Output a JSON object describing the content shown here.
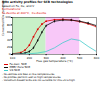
{
  "chart_data": {
    "type": "line",
    "title": "NOx activity profiles for SCR technologies",
    "subtitle": [
      "based on Fe, Cu, and V",
      "Formulations:",
      "Fe-Zeolite at 400°C,  Cu-Zeolite"
    ],
    "x_label": "Flue gas temperature (°C)",
    "y_label": "Converted NOx conversion (%)",
    "xlim": [
      100,
      600
    ],
    "ylim": [
      0,
      100
    ],
    "xticks": [
      100,
      200,
      300,
      400,
      500,
      600
    ],
    "yticks": [
      0,
      20,
      40,
      60,
      80,
      100
    ],
    "grid": false,
    "legend": "bottom",
    "bands": [
      {
        "range": [
          100,
          300
        ],
        "color": "#c8f0c8"
      },
      {
        "range": [
          300,
          500
        ],
        "color": "#f8c8f8"
      }
    ],
    "series": [
      {
        "name": "Fe-zeol. SCR",
        "color": "#dd0000",
        "marker": "square",
        "x": [
          100,
          150,
          175,
          200,
          225,
          250,
          275,
          300,
          350,
          400,
          450,
          500,
          550,
          600
        ],
        "values": [
          2,
          5,
          12,
          25,
          48,
          68,
          82,
          90,
          94,
          95,
          93,
          89,
          83,
          75
        ]
      },
      {
        "name": "MBE/ Pure SCR",
        "color": "#111111",
        "marker": "diamond",
        "x": [
          100,
          150,
          175,
          200,
          225,
          250,
          275,
          300,
          350,
          400,
          450,
          500,
          550,
          600
        ],
        "values": [
          1,
          2,
          4,
          8,
          18,
          38,
          60,
          78,
          90,
          93,
          93,
          90,
          85,
          78
        ]
      },
      {
        "name": "V2-SCR",
        "color": "#44cccc",
        "x": [
          100,
          150,
          200,
          250,
          300,
          350,
          400,
          450,
          500,
          550,
          600
        ],
        "values": [
          1,
          1,
          2,
          4,
          8,
          18,
          32,
          42,
          38,
          22,
          8
        ]
      }
    ],
    "annotations": [
      "- Fe-zeolites are best at low temperatures",
      "- Fe-profiles perform well at high temperatures",
      "- Vanadium-based SCRs are not suitable for this ultra-high"
    ]
  }
}
